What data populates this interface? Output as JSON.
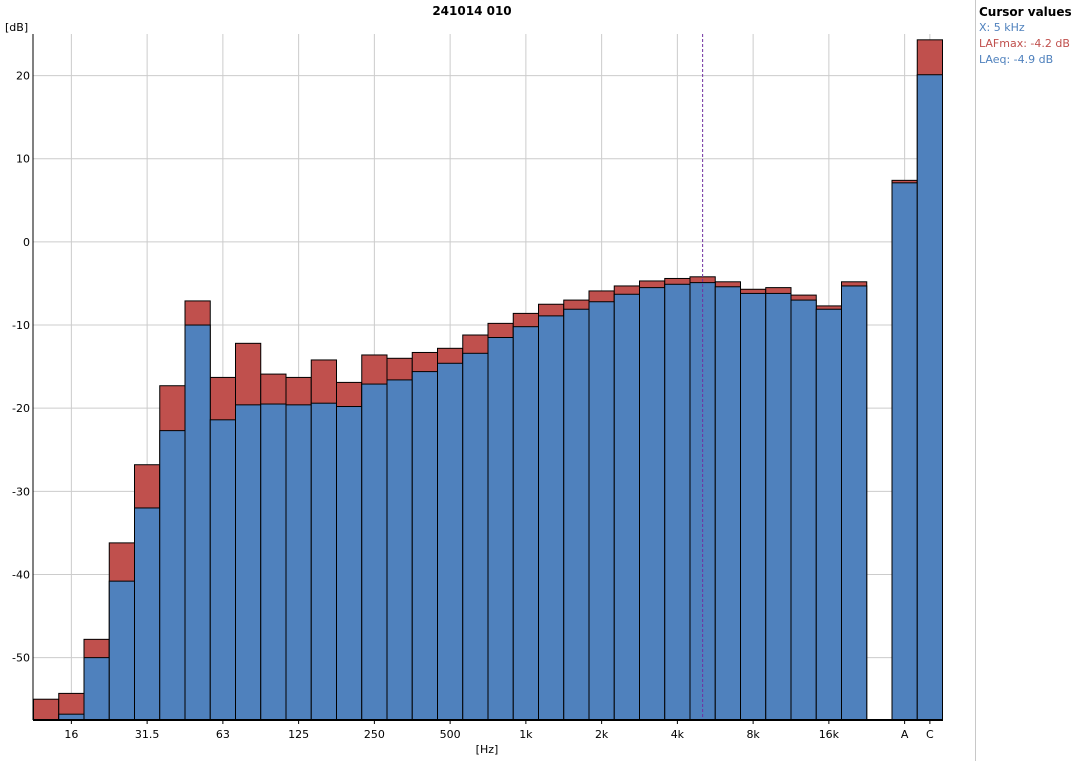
{
  "chart_data": {
    "type": "bar",
    "title": "241014 010",
    "ylabel": "[dB]",
    "xlabel": "[Hz]",
    "ylim": [
      -57.5,
      25
    ],
    "yticks": [
      -50,
      -40,
      -30,
      -20,
      -10,
      0,
      10,
      20
    ],
    "categories": [
      "12.5",
      "16",
      "20",
      "25",
      "31.5",
      "40",
      "50",
      "63",
      "80",
      "100",
      "125",
      "160",
      "200",
      "250",
      "315",
      "400",
      "500",
      "630",
      "800",
      "1k",
      "1.25k",
      "1.6k",
      "2k",
      "2.5k",
      "3.15k",
      "4k",
      "5k",
      "6.3k",
      "8k",
      "10k",
      "12.5k",
      "16k",
      "20k",
      "",
      "A",
      "C"
    ],
    "xtick_labels": [
      "16",
      "31.5",
      "63",
      "125",
      "250",
      "500",
      "1k",
      "2k",
      "4k",
      "8k",
      "16k",
      "A",
      "C"
    ],
    "series": [
      {
        "name": "LAFmax",
        "color": "#c0504d",
        "values": [
          -55.0,
          -54.3,
          -47.8,
          -36.2,
          -26.8,
          -17.3,
          -7.1,
          -16.3,
          -12.2,
          -15.9,
          -16.3,
          -14.2,
          -16.9,
          -13.6,
          -14.0,
          -13.3,
          -12.8,
          -11.2,
          -9.8,
          -8.6,
          -7.5,
          -7.0,
          -5.9,
          -5.3,
          -4.7,
          -4.4,
          -4.2,
          -4.8,
          -5.7,
          -5.5,
          -6.4,
          -7.7,
          -4.8,
          null,
          7.4,
          24.3
        ]
      },
      {
        "name": "LAeq",
        "color": "#4f81bd",
        "values": [
          -57.5,
          -56.8,
          -50.0,
          -40.8,
          -32.0,
          -22.7,
          -10.0,
          -21.4,
          -19.6,
          -19.5,
          -19.6,
          -19.4,
          -19.8,
          -17.1,
          -16.6,
          -15.6,
          -14.6,
          -13.4,
          -11.5,
          -10.2,
          -8.9,
          -8.1,
          -7.2,
          -6.3,
          -5.5,
          -5.1,
          -4.9,
          -5.4,
          -6.2,
          -6.2,
          -7.0,
          -8.1,
          -5.3,
          null,
          7.1,
          20.1
        ]
      }
    ],
    "cursor_x": "5k",
    "grid": true
  },
  "cursor_panel": {
    "title": "Cursor values",
    "x": "X: 5 kHz",
    "lafmax": "LAFmax: -4.2 dB",
    "laeq": "LAeq: -4.9 dB",
    "x_color": "#4f81bd",
    "lafmax_color": "#c0504d",
    "laeq_color": "#4f81bd"
  }
}
